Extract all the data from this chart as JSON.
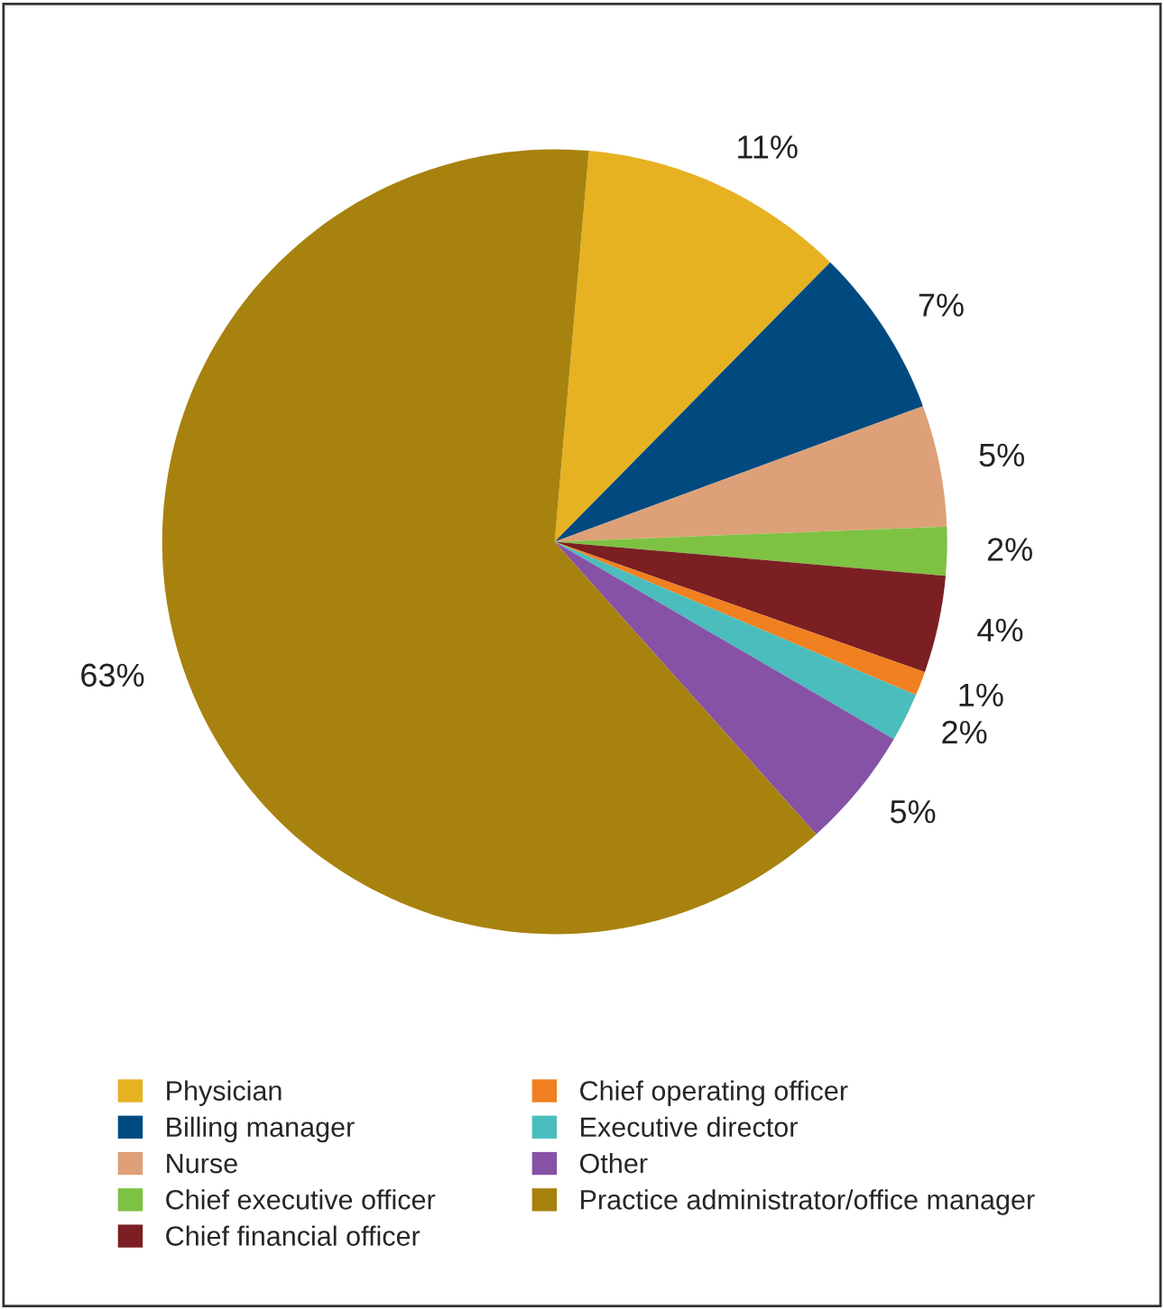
{
  "chart_data": {
    "type": "pie",
    "categories": [
      "Physician",
      "Billing manager",
      "Nurse",
      "Chief executive officer",
      "Chief financial officer",
      "Chief operating officer",
      "Executive director",
      "Other",
      "Practice administrator/office manager"
    ],
    "values": [
      11,
      7,
      5,
      2,
      4,
      1,
      2,
      5,
      63
    ],
    "value_labels": [
      "11%",
      "7%",
      "5%",
      "2%",
      "4%",
      "1%",
      "2%",
      "5%",
      "63%"
    ],
    "colors": [
      "#e6b222",
      "#004a80",
      "#dea078",
      "#7dc242",
      "#7b1f22",
      "#f08020",
      "#4bbdbd",
      "#8652a6",
      "#a8820f"
    ],
    "legend": "bottom"
  }
}
